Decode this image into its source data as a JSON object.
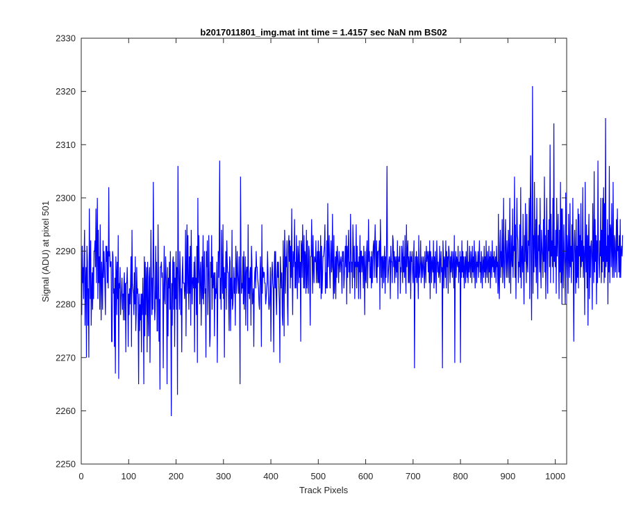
{
  "chart_data": {
    "type": "line",
    "title": "b2017011801_img.mat int time = 1.4157 sec  NaN nm BS02",
    "xlabel": "Track Pixels",
    "ylabel": "Signal (ADU) at pixel 501",
    "xlim": [
      0,
      1024
    ],
    "ylim": [
      2250,
      2330
    ],
    "xticks": [
      0,
      100,
      200,
      300,
      400,
      500,
      600,
      700,
      800,
      900,
      1000
    ],
    "yticks": [
      2250,
      2260,
      2270,
      2280,
      2290,
      2300,
      2310,
      2320,
      2330
    ],
    "grid": false,
    "box": true,
    "line_color": "#0000ff",
    "x_start": 1,
    "x_step": 1,
    "series": [
      {
        "values": [
          2278,
          2291,
          2284,
          2287,
          2281,
          2289,
          2294,
          2276,
          2284,
          2287,
          2270,
          2291,
          2288,
          2276,
          2283,
          2270,
          2298,
          2289,
          2281,
          2292,
          2276,
          2282,
          2286,
          2279,
          2287,
          2281,
          2290,
          2290,
          2292,
          2287,
          2298,
          2284,
          2292,
          2300,
          2281,
          2294,
          2284,
          2289,
          2279,
          2295,
          2285,
          2277,
          2288,
          2285,
          2279,
          2292,
          2285,
          2290,
          2287,
          2283,
          2278,
          2291,
          2288,
          2291,
          2284,
          2290,
          2283,
          2302,
          2289,
          2290,
          2287,
          2288,
          2288,
          2273,
          2273,
          2290,
          2289,
          2282,
          2283,
          2272,
          2285,
          2267,
          2289,
          2286,
          2278,
          2288,
          2281,
          2293,
          2266,
          2284,
          2283,
          2287,
          2278,
          2281,
          2283,
          2285,
          2279,
          2282,
          2277,
          2284,
          2286,
          2277,
          2284,
          2271,
          2284,
          2284,
          2287,
          2282,
          2272,
          2282,
          2278,
          2283,
          2280,
          2284,
          2289,
          2272,
          2294,
          2284,
          2283,
          2282,
          2278,
          2286,
          2280,
          2289,
          2275,
          2278,
          2287,
          2282,
          2283,
          2278,
          2265,
          2282,
          2275,
          2280,
          2277,
          2282,
          2271,
          2282,
          2278,
          2285,
          2280,
          2265,
          2289,
          2274,
          2288,
          2278,
          2284,
          2287,
          2271,
          2288,
          2279,
          2274,
          2285,
          2287,
          2269,
          2281,
          2294,
          2285,
          2278,
          2285,
          2279,
          2303,
          2288,
          2282,
          2277,
          2279,
          2291,
          2281,
          2288,
          2275,
          2275,
          2295,
          2285,
          2273,
          2281,
          2264,
          2287,
          2287,
          2288,
          2285,
          2286,
          2283,
          2268,
          2284,
          2291,
          2281,
          2280,
          2289,
          2286,
          2283,
          2265,
          2287,
          2274,
          2285,
          2283,
          2288,
          2279,
          2290,
          2277,
          2259,
          2284,
          2276,
          2288,
          2289,
          2279,
          2288,
          2272,
          2285,
          2281,
          2290,
          2279,
          2287,
          2263,
          2306,
          2287,
          2284,
          2279,
          2290,
          2286,
          2278,
          2283,
          2271,
          2285,
          2289,
          2284,
          2284,
          2284,
          2281,
          2283,
          2294,
          2274,
          2287,
          2295,
          2282,
          2293,
          2284,
          2279,
          2289,
          2282,
          2291,
          2276,
          2294,
          2285,
          2280,
          2285,
          2285,
          2283,
          2288,
          2271,
          2289,
          2283,
          2285,
          2278,
          2291,
          2269,
          2300,
          2284,
          2293,
          2287,
          2280,
          2286,
          2288,
          2276,
          2283,
          2289,
          2281,
          2293,
          2280,
          2285,
          2290,
          2282,
          2283,
          2270,
          2290,
          2287,
          2292,
          2278,
          2283,
          2293,
          2286,
          2272,
          2274,
          2288,
          2285,
          2293,
          2279,
          2289,
          2283,
          2285,
          2286,
          2274,
          2286,
          2281,
          2283,
          2282,
          2288,
          2269,
          2281,
          2290,
          2285,
          2291,
          2307,
          2281,
          2285,
          2279,
          2294,
          2286,
          2282,
          2295,
          2281,
          2287,
          2270,
          2286,
          2283,
          2290,
          2279,
          2292,
          2288,
          2286,
          2286,
          2280,
          2275,
          2289,
          2288,
          2275,
          2285,
          2281,
          2294,
          2279,
          2280,
          2283,
          2287,
          2282,
          2285,
          2276,
          2291,
          2287,
          2282,
          2290,
          2286,
          2284,
          2282,
          2289,
          2282,
          2265,
          2304,
          2288,
          2282,
          2284,
          2283,
          2289,
          2280,
          2290,
          2279,
          2284,
          2289,
          2276,
          2286,
          2287,
          2287,
          2275,
          2295,
          2282,
          2285,
          2281,
          2286,
          2287,
          2276,
          2291,
          2288,
          2280,
          2281,
          2283,
          2272,
          2283,
          2286,
          2287,
          2283,
          2290,
          2287,
          2287,
          2285,
          2284,
          2283,
          2280,
          2279,
          2285,
          2289,
          2283,
          2272,
          2295,
          2282,
          2287,
          2285,
          2286,
          2286,
          2284,
          2284,
          2280,
          2281,
          2283,
          2284,
          2290,
          2286,
          2281,
          2279,
          2280,
          2282,
          2287,
          2273,
          2282,
          2286,
          2288,
          2284,
          2283,
          2271,
          2286,
          2290,
          2283,
          2290,
          2282,
          2278,
          2285,
          2288,
          2285,
          2288,
          2283,
          2280,
          2269,
          2289,
          2286,
          2283,
          2286,
          2278,
          2276,
          2292,
          2286,
          2274,
          2294,
          2290,
          2282,
          2289,
          2287,
          2292,
          2280,
          2276,
          2291,
          2293,
          2288,
          2292,
          2283,
          2291,
          2285,
          2298,
          2286,
          2278,
          2290,
          2287,
          2289,
          2296,
          2283,
          2288,
          2283,
          2293,
          2288,
          2281,
          2291,
          2289,
          2284,
          2292,
          2285,
          2288,
          2273,
          2292,
          2291,
          2285,
          2295,
          2290,
          2283,
          2293,
          2283,
          2290,
          2289,
          2282,
          2294,
          2283,
          2292,
          2286,
          2282,
          2291,
          2290,
          2284,
          2276,
          2289,
          2289,
          2296,
          2289,
          2282,
          2293,
          2287,
          2284,
          2289,
          2288,
          2288,
          2292,
          2284,
          2287,
          2290,
          2284,
          2292,
          2284,
          2290,
          2283,
          2288,
          2293,
          2281,
          2291,
          2282,
          2285,
          2289,
          2289,
          2290,
          2291,
          2295,
          2282,
          2286,
          2283,
          2292,
          2283,
          2299,
          2287,
          2290,
          2293,
          2286,
          2283,
          2289,
          2292,
          2286,
          2287,
          2297,
          2287,
          2281,
          2293,
          2282,
          2285,
          2289,
          2281,
          2290,
          2285,
          2291,
          2289,
          2287,
          2284,
          2290,
          2288,
          2286,
          2288,
          2289,
          2287,
          2282,
          2290,
          2288,
          2290,
          2283,
          2285,
          2288,
          2291,
          2287,
          2293,
          2280,
          2291,
          2285,
          2290,
          2294,
          2286,
          2288,
          2282,
          2297,
          2291,
          2286,
          2288,
          2283,
          2295,
          2291,
          2285,
          2291,
          2281,
          2288,
          2287,
          2295,
          2283,
          2291,
          2287,
          2288,
          2281,
          2289,
          2286,
          2293,
          2281,
          2290,
          2290,
          2286,
          2289,
          2289,
          2283,
          2291,
          2287,
          2278,
          2290,
          2285,
          2284,
          2290,
          2292,
          2283,
          2288,
          2296,
          2288,
          2290,
          2285,
          2285,
          2289,
          2283,
          2290,
          2284,
          2288,
          2291,
          2292,
          2285,
          2291,
          2295,
          2289,
          2285,
          2292,
          2284,
          2290,
          2287,
          2290,
          2290,
          2292,
          2279,
          2296,
          2290,
          2285,
          2289,
          2283,
          2289,
          2289,
          2284,
          2288,
          2291,
          2282,
          2289,
          2285,
          2291,
          2306,
          2289,
          2284,
          2286,
          2288,
          2289,
          2288,
          2281,
          2291,
          2288,
          2288,
          2284,
          2293,
          2292,
          2287,
          2290,
          2284,
          2289,
          2288,
          2285,
          2289,
          2286,
          2292,
          2281,
          2288,
          2289,
          2288,
          2291,
          2282,
          2287,
          2286,
          2291,
          2289,
          2284,
          2292,
          2286,
          2289,
          2285,
          2293,
          2286,
          2282,
          2295,
          2287,
          2290,
          2292,
          2284,
          2289,
          2284,
          2288,
          2290,
          2281,
          2289,
          2288,
          2290,
          2286,
          2284,
          2289,
          2292,
          2268,
          2284,
          2289,
          2285,
          2290,
          2284,
          2289,
          2287,
          2281,
          2293,
          2285,
          2286,
          2288,
          2292,
          2284,
          2287,
          2289,
          2285,
          2287,
          2289,
          2286,
          2283,
          2290,
          2287,
          2284,
          2291,
          2288,
          2290,
          2289,
          2286,
          2290,
          2284,
          2292,
          2281,
          2290,
          2288,
          2284,
          2289,
          2287,
          2286,
          2292,
          2283,
          2289,
          2284,
          2290,
          2287,
          2282,
          2292,
          2289,
          2286,
          2288,
          2285,
          2286,
          2291,
          2284,
          2288,
          2290,
          2286,
          2287,
          2268,
          2292,
          2289,
          2283,
          2289,
          2288,
          2285,
          2292,
          2283,
          2290,
          2287,
          2289,
          2282,
          2291,
          2290,
          2288,
          2284,
          2289,
          2286,
          2290,
          2287,
          2285,
          2290,
          2288,
          2283,
          2293,
          2269,
          2288,
          2290,
          2285,
          2289,
          2288,
          2287,
          2291,
          2284,
          2288,
          2286,
          2290,
          2269,
          2289,
          2285,
          2292,
          2286,
          2290,
          2285,
          2289,
          2283,
          2287,
          2289,
          2284,
          2290,
          2287,
          2285,
          2292,
          2284,
          2288,
          2286,
          2291,
          2287,
          2285,
          2290,
          2288,
          2284,
          2291,
          2286,
          2289,
          2285,
          2292,
          2287,
          2283,
          2290,
          2289,
          2284,
          2288,
          2287,
          2290,
          2285,
          2289,
          2292,
          2286,
          2288,
          2284,
          2290,
          2287,
          2283,
          2289,
          2288,
          2285,
          2291,
          2286,
          2289,
          2284,
          2292,
          2287,
          2285,
          2290,
          2288,
          2284,
          2291,
          2286,
          2289,
          2283,
          2290,
          2288,
          2285,
          2292,
          2287,
          2289,
          2286,
          2290,
          2285,
          2288,
          2289,
          2284,
          2291,
          2287,
          2288,
          2282,
          2297,
          2284,
          2281,
          2291,
          2294,
          2285,
          2290,
          2287,
          2296,
          2284,
          2288,
          2300,
          2286,
          2283,
          2291,
          2296,
          2288,
          2285,
          2292,
          2289,
          2285,
          2294,
          2290,
          2284,
          2300,
          2288,
          2282,
          2293,
          2289,
          2287,
          2298,
          2285,
          2291,
          2290,
          2304,
          2285,
          2295,
          2281,
          2289,
          2300,
          2293,
          2292,
          2284,
          2288,
          2287,
          2295,
          2285,
          2302,
          2283,
          2289,
          2291,
          2286,
          2297,
          2287,
          2280,
          2293,
          2288,
          2299,
          2290,
          2284,
          2297,
          2288,
          2286,
          2292,
          2291,
          2300,
          2281,
          2298,
          2308,
          2288,
          2277,
          2294,
          2321,
          2282,
          2293,
          2286,
          2303,
          2291,
          2287,
          2296,
          2284,
          2300,
          2289,
          2281,
          2293,
          2290,
          2295,
          2286,
          2300,
          2287,
          2283,
          2294,
          2291,
          2289,
          2285,
          2296,
          2288,
          2304,
          2286,
          2293,
          2281,
          2291,
          2300,
          2288,
          2282,
          2294,
          2290,
          2296,
          2287,
          2310,
          2284,
          2297,
          2289,
          2292,
          2287,
          2300,
          2284,
          2314,
          2288,
          2291,
          2287,
          2294,
          2282,
          2300,
          2289,
          2292,
          2297,
          2288,
          2281,
          2294,
          2286,
          2303,
          2284,
          2298,
          2280,
          2298,
          2287,
          2283,
          2295,
          2290,
          2287,
          2280,
          2301,
          2289,
          2285,
          2293,
          2290,
          2282,
          2297,
          2289,
          2285,
          2299,
          2287,
          2291,
          2284,
          2295,
          2288,
          2300,
          2286,
          2273,
          2291,
          2294,
          2289,
          2282,
          2296,
          2284,
          2291,
          2285,
          2298,
          2283,
          2297,
          2289,
          2293,
          2285,
          2299,
          2287,
          2292,
          2288,
          2302,
          2285,
          2291,
          2289,
          2278,
          2303,
          2290,
          2286,
          2295,
          2283,
          2293,
          2276,
          2292,
          2297,
          2281,
          2291,
          2285,
          2291,
          2292,
          2288,
          2279,
          2299,
          2291,
          2284,
          2305,
          2286,
          2296,
          2288,
          2293,
          2280,
          2292,
          2284,
          2307,
          2290,
          2288,
          2285,
          2292,
          2289,
          2300,
          2284,
          2294,
          2286,
          2300,
          2288,
          2302,
          2284,
          2299,
          2285,
          2315,
          2287,
          2291,
          2288,
          2296,
          2280,
          2293,
          2286,
          2306,
          2284,
          2295,
          2294,
          2287,
          2299,
          2290,
          2285,
          2303,
          2289,
          2285,
          2293,
          2292,
          2286,
          2289,
          2296,
          2285,
          2298,
          2290,
          2291,
          2286,
          2293,
          2285,
          2296,
          2285,
          2290,
          2291,
          2289,
          2293
        ]
      }
    ]
  }
}
